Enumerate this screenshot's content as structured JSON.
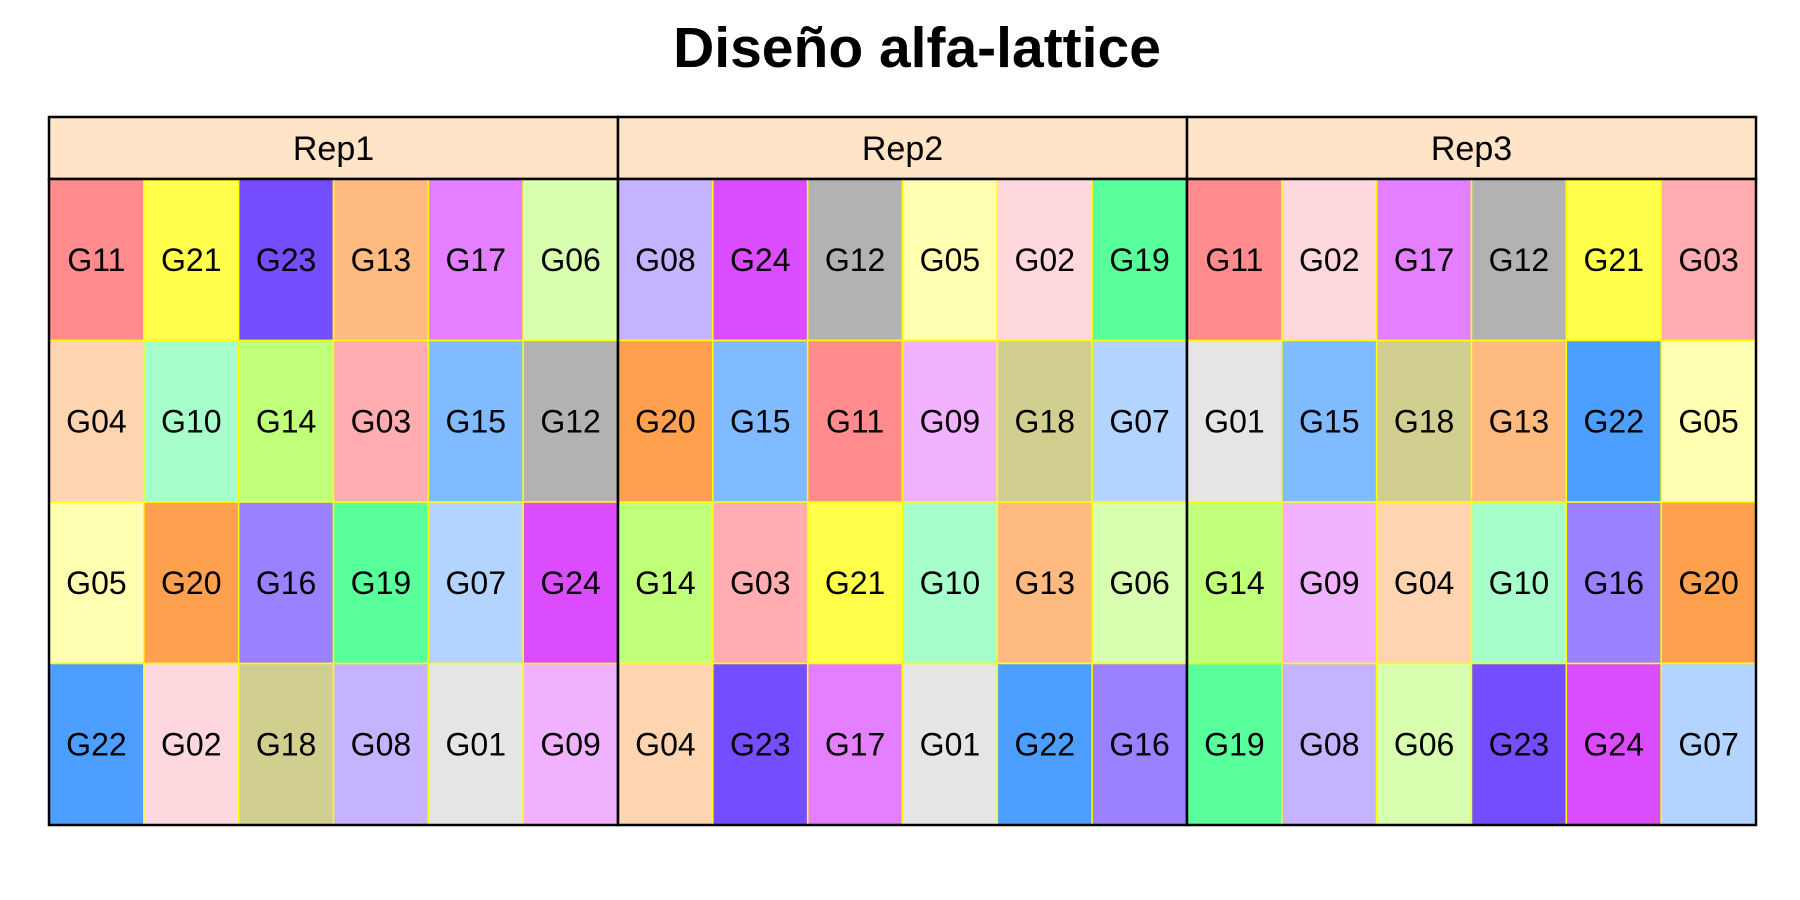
{
  "chart_data": {
    "type": "heatmap",
    "title": "Diseño alfa-lattice",
    "panels": [
      {
        "label": "Rep1",
        "grid": [
          [
            "G11",
            "G21",
            "G23",
            "G13",
            "G17",
            "G06"
          ],
          [
            "G04",
            "G10",
            "G14",
            "G03",
            "G15",
            "G12"
          ],
          [
            "G05",
            "G20",
            "G16",
            "G19",
            "G07",
            "G24"
          ],
          [
            "G22",
            "G02",
            "G18",
            "G08",
            "G01",
            "G09"
          ]
        ]
      },
      {
        "label": "Rep2",
        "grid": [
          [
            "G08",
            "G24",
            "G12",
            "G05",
            "G02",
            "G19"
          ],
          [
            "G20",
            "G15",
            "G11",
            "G09",
            "G18",
            "G07"
          ],
          [
            "G14",
            "G03",
            "G21",
            "G10",
            "G13",
            "G06"
          ],
          [
            "G04",
            "G23",
            "G17",
            "G01",
            "G22",
            "G16"
          ]
        ]
      },
      {
        "label": "Rep3",
        "grid": [
          [
            "G11",
            "G02",
            "G17",
            "G12",
            "G21",
            "G03"
          ],
          [
            "G01",
            "G15",
            "G18",
            "G13",
            "G22",
            "G05"
          ],
          [
            "G14",
            "G09",
            "G04",
            "G10",
            "G16",
            "G20"
          ],
          [
            "G19",
            "G08",
            "G06",
            "G23",
            "G24",
            "G07"
          ]
        ]
      }
    ],
    "genotype_colors": {
      "G01": "#e5e5e5",
      "G02": "#ffd8de",
      "G03": "#ffadb0",
      "G04": "#ffd4b0",
      "G05": "#ffffb1",
      "G06": "#d8ffb0",
      "G07": "#b2d4ff",
      "G08": "#c5b3ff",
      "G09": "#f0b2ff",
      "G10": "#a6ffcb",
      "G11": "#ff8b8c",
      "G12": "#b2b2b2",
      "G13": "#ffba80",
      "G14": "#c0ff7a",
      "G15": "#80baff",
      "G16": "#9b80ff",
      "G17": "#e480ff",
      "G18": "#d1cf8f",
      "G19": "#58ff9a",
      "G20": "#ffa04f",
      "G21": "#ffff4c",
      "G22": "#4d9fff",
      "G23": "#744dff",
      "G24": "#dc4cff"
    },
    "strip_fill": "#ffe4c8",
    "cell_border_color": "#ffff00"
  }
}
